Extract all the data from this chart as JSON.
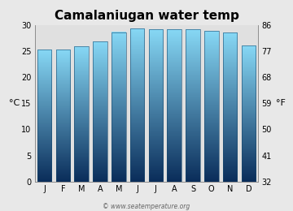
{
  "title": "Camalaniugan water temp",
  "months": [
    "J",
    "F",
    "M",
    "A",
    "M",
    "J",
    "J",
    "A",
    "S",
    "O",
    "N",
    "D"
  ],
  "values_c": [
    25.4,
    25.4,
    25.9,
    26.9,
    28.7,
    29.4,
    29.3,
    29.2,
    29.2,
    29.0,
    28.6,
    26.1
  ],
  "ylim_c": [
    0,
    30
  ],
  "yticks_c": [
    0,
    5,
    10,
    15,
    20,
    25,
    30
  ],
  "yticks_f": [
    32,
    41,
    50,
    59,
    68,
    77,
    86
  ],
  "ylabel_left": "°C",
  "ylabel_right": "°F",
  "bar_color_top": "#87d8f5",
  "bar_color_bottom": "#0a2d5a",
  "bar_edge_color": "#1a4a6e",
  "background_color": "#e8e8e8",
  "plot_bg_color": "#e0e0e0",
  "title_fontsize": 11,
  "axis_fontsize": 7,
  "label_fontsize": 8,
  "watermark": "© www.seatemperature.org"
}
